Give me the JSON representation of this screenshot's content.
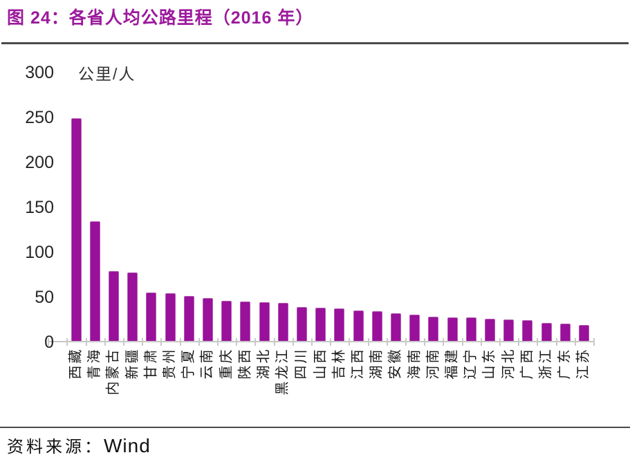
{
  "header": {
    "title": "图 24：各省人均公路里程（2016 年）"
  },
  "source": {
    "prefix": "资料来源：",
    "name": "Wind"
  },
  "chart_data": {
    "type": "bar",
    "title": "各省人均公路里程（2016 年）",
    "unit_label": "公里/人",
    "categories": [
      "西藏",
      "青海",
      "内蒙古",
      "新疆",
      "甘肃",
      "贵州",
      "宁夏",
      "云南",
      "重庆",
      "陕西",
      "湖北",
      "黑龙江",
      "四川",
      "山西",
      "吉林",
      "江西",
      "湖南",
      "安徽",
      "海南",
      "河南",
      "福建",
      "辽宁",
      "山东",
      "河北",
      "广西",
      "浙江",
      "广东",
      "江苏"
    ],
    "values": [
      248,
      133,
      78,
      76,
      54,
      53,
      50,
      48,
      45,
      44,
      43,
      42,
      38,
      37,
      36,
      34,
      33,
      31,
      29,
      27,
      26,
      26,
      25,
      24,
      23,
      20,
      19,
      18
    ],
    "xlabel": "",
    "ylabel": "公里/人",
    "ylim": [
      0,
      300
    ],
    "yticks": [
      0,
      50,
      100,
      150,
      200,
      250,
      300
    ],
    "bar_color": "#99109A",
    "axis_color": "#c6c6c6",
    "grid": false,
    "legend_position": "none"
  }
}
